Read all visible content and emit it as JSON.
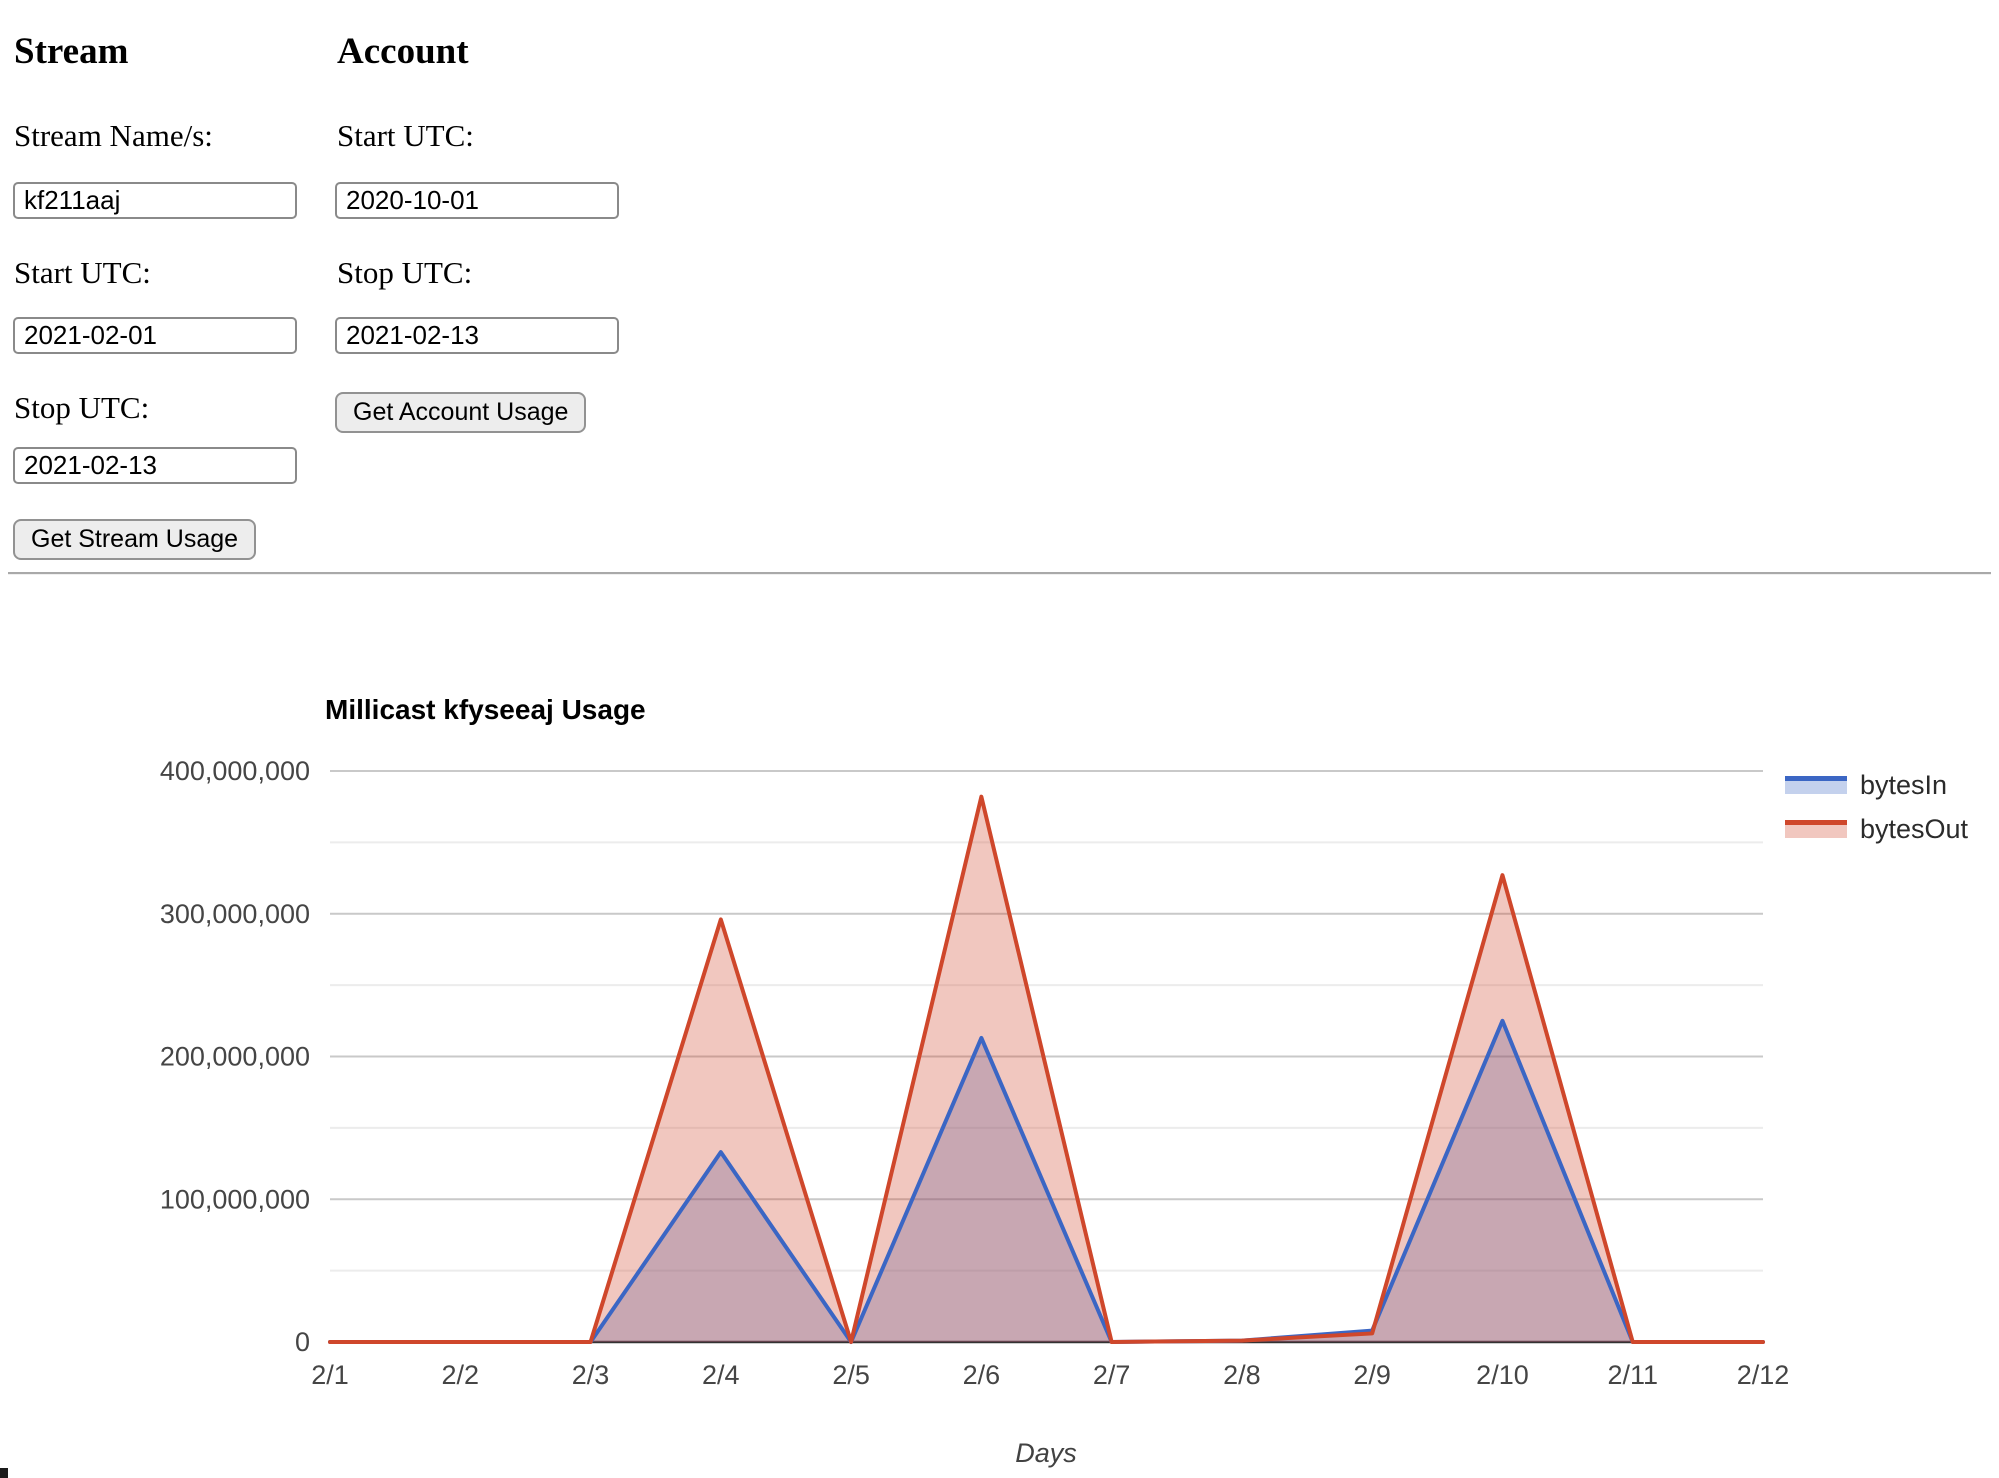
{
  "form": {
    "stream": {
      "heading": "Stream",
      "name_label": "Stream Name/s:",
      "name_value": "kf211aaj",
      "start_label": "Start UTC:",
      "start_value": "2021-02-01",
      "stop_label": "Stop UTC:",
      "stop_value": "2021-02-13",
      "button_label": "Get Stream Usage"
    },
    "account": {
      "heading": "Account",
      "start_label": "Start UTC:",
      "start_value": "2020-10-01",
      "stop_label": "Stop UTC:",
      "stop_value": "2021-02-13",
      "button_label": "Get Account Usage"
    }
  },
  "chart_data": {
    "type": "area",
    "title": "Millicast kfyseeaj Usage",
    "xlabel": "Days",
    "ylabel": "",
    "categories": [
      "2/1",
      "2/2",
      "2/3",
      "2/4",
      "2/5",
      "2/6",
      "2/7",
      "2/8",
      "2/9",
      "2/10",
      "2/11",
      "2/12"
    ],
    "series": [
      {
        "name": "bytesIn",
        "color": "#3B66C4",
        "values": [
          0,
          0,
          0,
          133000000,
          0,
          213000000,
          0,
          1000000,
          8000000,
          225000000,
          0,
          0
        ]
      },
      {
        "name": "bytesOut",
        "color": "#CF472B",
        "values": [
          0,
          0,
          0,
          296000000,
          0,
          382000000,
          0,
          1000000,
          6000000,
          327000000,
          0,
          0
        ]
      }
    ],
    "ylim": [
      0,
      400000000
    ],
    "y_major_step": 100000000,
    "y_minor_step": 50000000,
    "grid": true,
    "legend_position": "right",
    "fill_opacity": 0.3,
    "colors": {
      "major_grid": "#c9c9c9",
      "minor_grid": "#ececec",
      "baseline": "#333333",
      "tick_label": "#454545"
    }
  }
}
